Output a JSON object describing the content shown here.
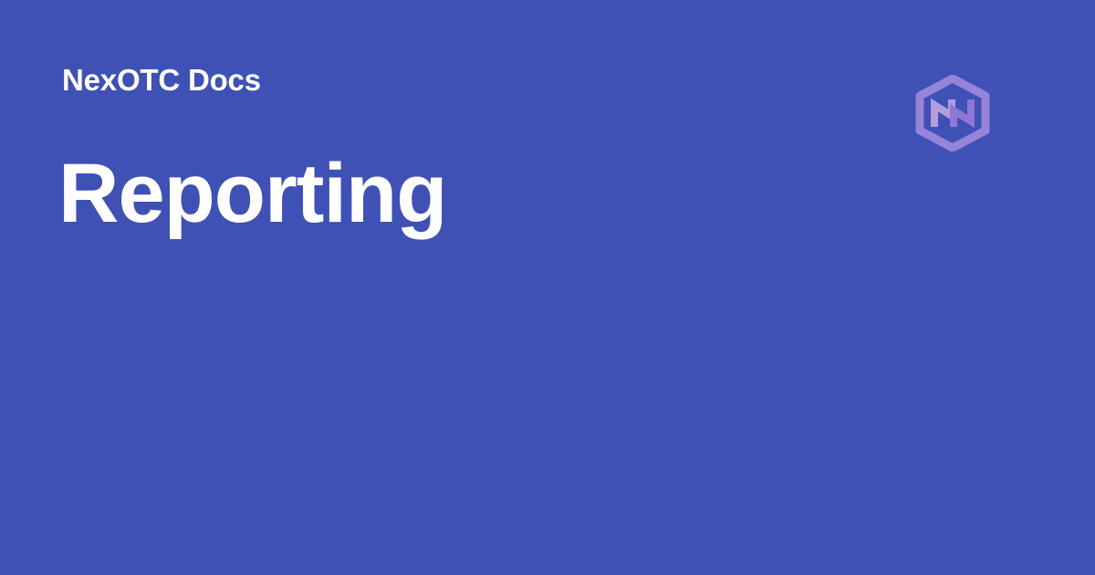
{
  "card": {
    "site_name": "NexOTC Docs",
    "page_title": "Reporting",
    "logo_icon": "nexotc-hexagon-logo-icon"
  },
  "colors": {
    "background": "#3f51b5",
    "text": "#ffffff",
    "logo_primary": "#8e7bd6",
    "logo_secondary": "#b39ddb"
  }
}
